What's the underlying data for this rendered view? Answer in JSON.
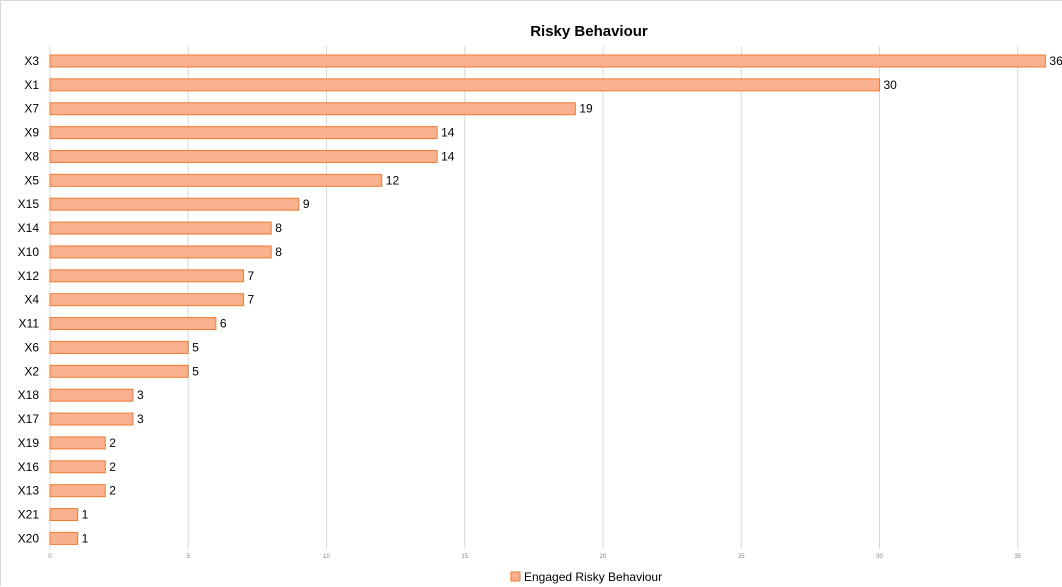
{
  "chart_data": {
    "type": "bar",
    "orientation": "horizontal",
    "title": "Risky Behaviour",
    "xlabel": "",
    "ylabel": "",
    "categories": [
      "X3",
      "X1",
      "X7",
      "X9",
      "X8",
      "X5",
      "X15",
      "X14",
      "X10",
      "X12",
      "X4",
      "X11",
      "X6",
      "X2",
      "X18",
      "X17",
      "X19",
      "X16",
      "X13",
      "X21",
      "X20"
    ],
    "series": [
      {
        "name": "Engaged Risky Behaviour",
        "values": [
          36,
          30,
          19,
          14,
          14,
          12,
          9,
          8,
          8,
          7,
          7,
          6,
          5,
          5,
          3,
          3,
          2,
          2,
          2,
          1,
          1
        ],
        "color": "#f8b08f",
        "stroke": "#ed7d31"
      }
    ],
    "xlim": [
      0,
      37
    ],
    "xticks": [
      0,
      5,
      10,
      15,
      20,
      25,
      30,
      35
    ],
    "grid": "vertical",
    "legend_position": "bottom",
    "data_labels": true
  }
}
